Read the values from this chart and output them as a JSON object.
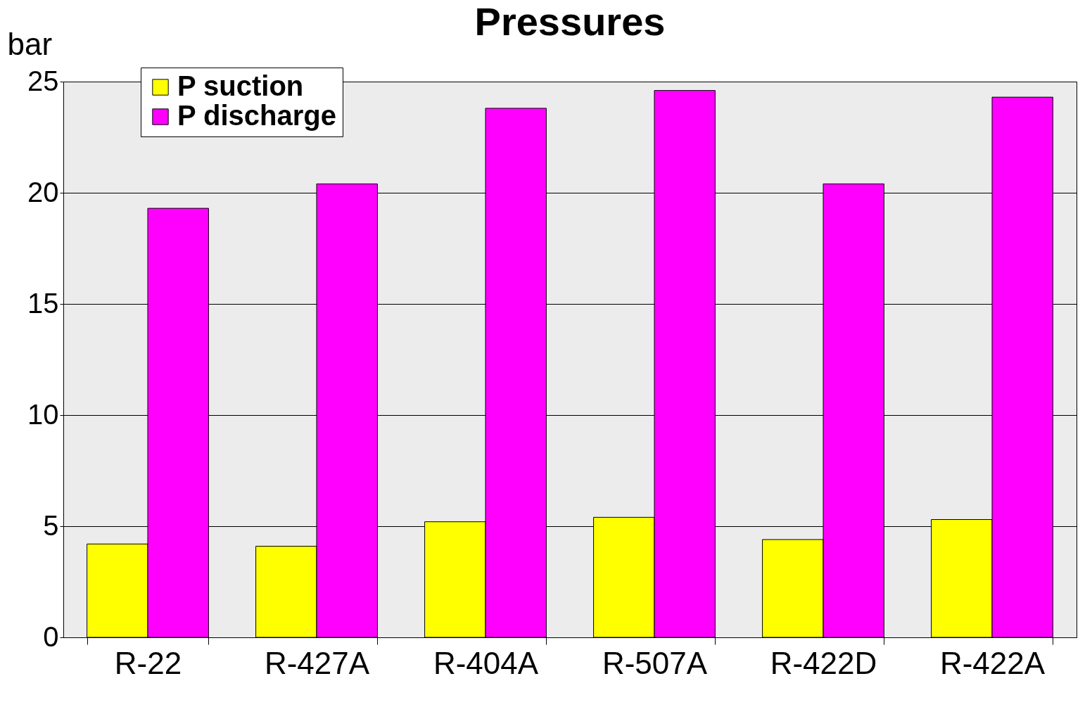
{
  "chart_data": {
    "type": "bar",
    "title": "Pressures",
    "ylabel": "bar",
    "categories": [
      "R-22",
      "R-427A",
      "R-404A",
      "R-507A",
      "R-422D",
      "R-422A"
    ],
    "series": [
      {
        "name": "P suction",
        "color": "#ffff00",
        "values": [
          4.2,
          4.1,
          5.2,
          5.4,
          4.4,
          5.3
        ]
      },
      {
        "name": "P discharge",
        "color": "#ff00ff",
        "values": [
          19.3,
          20.4,
          23.8,
          24.6,
          20.4,
          24.3
        ]
      }
    ],
    "ylim": [
      0,
      25
    ],
    "yticks": [
      0,
      5,
      10,
      15,
      20,
      25
    ],
    "grid": "y",
    "legend": "top left"
  }
}
